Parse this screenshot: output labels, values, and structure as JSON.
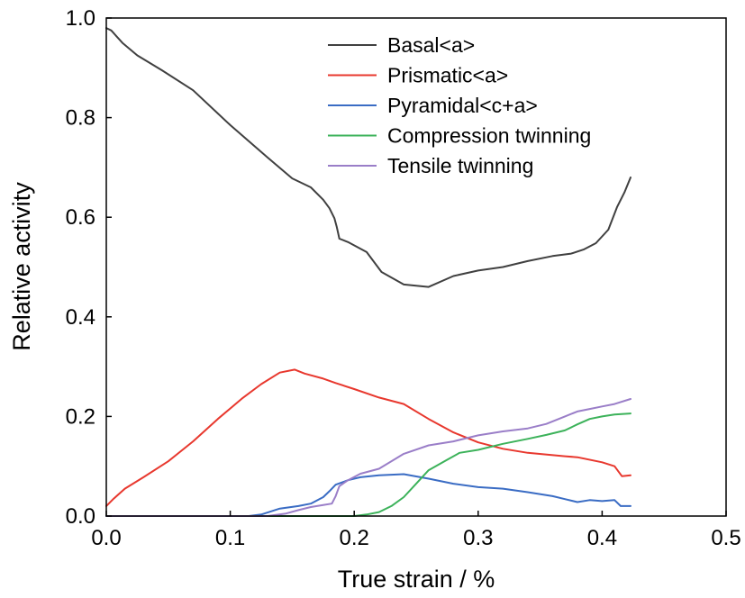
{
  "chart_data": {
    "type": "line",
    "title": "",
    "xlabel": "True strain / %",
    "ylabel": "Relative activity",
    "xlim": [
      0,
      0.5
    ],
    "ylim": [
      0,
      1.0
    ],
    "x_ticks": [
      "0.0",
      "0.1",
      "0.2",
      "0.3",
      "0.4",
      "0.5"
    ],
    "y_ticks": [
      "0.0",
      "0.2",
      "0.4",
      "0.6",
      "0.8",
      "1.0"
    ],
    "grid": false,
    "legend_position": "top-right",
    "series": [
      {
        "name": "Basal<a>",
        "color": "#404040",
        "points": [
          [
            0.0,
            0.98
          ],
          [
            0.004,
            0.975
          ],
          [
            0.013,
            0.95
          ],
          [
            0.025,
            0.925
          ],
          [
            0.045,
            0.895
          ],
          [
            0.07,
            0.855
          ],
          [
            0.1,
            0.785
          ],
          [
            0.13,
            0.72
          ],
          [
            0.15,
            0.678
          ],
          [
            0.165,
            0.66
          ],
          [
            0.175,
            0.635
          ],
          [
            0.18,
            0.618
          ],
          [
            0.184,
            0.598
          ],
          [
            0.186,
            0.58
          ],
          [
            0.188,
            0.557
          ],
          [
            0.195,
            0.55
          ],
          [
            0.21,
            0.53
          ],
          [
            0.222,
            0.49
          ],
          [
            0.24,
            0.465
          ],
          [
            0.26,
            0.46
          ],
          [
            0.28,
            0.482
          ],
          [
            0.3,
            0.493
          ],
          [
            0.32,
            0.5
          ],
          [
            0.34,
            0.512
          ],
          [
            0.36,
            0.522
          ],
          [
            0.375,
            0.527
          ],
          [
            0.385,
            0.535
          ],
          [
            0.395,
            0.548
          ],
          [
            0.405,
            0.575
          ],
          [
            0.412,
            0.62
          ],
          [
            0.418,
            0.65
          ],
          [
            0.423,
            0.68
          ]
        ]
      },
      {
        "name": "Prismatic<a>",
        "color": "#e8382e",
        "points": [
          [
            0.0,
            0.02
          ],
          [
            0.006,
            0.035
          ],
          [
            0.015,
            0.055
          ],
          [
            0.03,
            0.078
          ],
          [
            0.05,
            0.11
          ],
          [
            0.07,
            0.15
          ],
          [
            0.09,
            0.195
          ],
          [
            0.11,
            0.237
          ],
          [
            0.125,
            0.265
          ],
          [
            0.14,
            0.288
          ],
          [
            0.152,
            0.294
          ],
          [
            0.16,
            0.286
          ],
          [
            0.175,
            0.276
          ],
          [
            0.185,
            0.267
          ],
          [
            0.2,
            0.255
          ],
          [
            0.22,
            0.238
          ],
          [
            0.24,
            0.225
          ],
          [
            0.26,
            0.195
          ],
          [
            0.28,
            0.168
          ],
          [
            0.3,
            0.148
          ],
          [
            0.32,
            0.135
          ],
          [
            0.34,
            0.127
          ],
          [
            0.37,
            0.12
          ],
          [
            0.38,
            0.118
          ],
          [
            0.4,
            0.108
          ],
          [
            0.41,
            0.1
          ],
          [
            0.416,
            0.08
          ],
          [
            0.423,
            0.082
          ]
        ]
      },
      {
        "name": "Pyramidal<c+a>",
        "color": "#3a6cc4",
        "points": [
          [
            0.0,
            0.0
          ],
          [
            0.115,
            0.0
          ],
          [
            0.125,
            0.003
          ],
          [
            0.14,
            0.015
          ],
          [
            0.155,
            0.02
          ],
          [
            0.165,
            0.025
          ],
          [
            0.175,
            0.038
          ],
          [
            0.18,
            0.05
          ],
          [
            0.185,
            0.063
          ],
          [
            0.195,
            0.072
          ],
          [
            0.205,
            0.078
          ],
          [
            0.22,
            0.082
          ],
          [
            0.24,
            0.084
          ],
          [
            0.26,
            0.075
          ],
          [
            0.28,
            0.065
          ],
          [
            0.3,
            0.058
          ],
          [
            0.32,
            0.055
          ],
          [
            0.34,
            0.048
          ],
          [
            0.36,
            0.04
          ],
          [
            0.37,
            0.034
          ],
          [
            0.38,
            0.028
          ],
          [
            0.39,
            0.032
          ],
          [
            0.4,
            0.03
          ],
          [
            0.41,
            0.032
          ],
          [
            0.415,
            0.02
          ],
          [
            0.423,
            0.02
          ]
        ]
      },
      {
        "name": "Compression twinning",
        "color": "#3cb25a",
        "points": [
          [
            0.0,
            0.0
          ],
          [
            0.2,
            0.0
          ],
          [
            0.21,
            0.003
          ],
          [
            0.22,
            0.008
          ],
          [
            0.23,
            0.02
          ],
          [
            0.24,
            0.038
          ],
          [
            0.25,
            0.065
          ],
          [
            0.26,
            0.092
          ],
          [
            0.275,
            0.113
          ],
          [
            0.285,
            0.127
          ],
          [
            0.3,
            0.133
          ],
          [
            0.32,
            0.145
          ],
          [
            0.34,
            0.155
          ],
          [
            0.355,
            0.163
          ],
          [
            0.37,
            0.172
          ],
          [
            0.38,
            0.184
          ],
          [
            0.39,
            0.195
          ],
          [
            0.4,
            0.2
          ],
          [
            0.41,
            0.204
          ],
          [
            0.423,
            0.206
          ]
        ]
      },
      {
        "name": "Tensile twinning",
        "color": "#9a7ec8",
        "points": [
          [
            0.0,
            0.0
          ],
          [
            0.13,
            0.0
          ],
          [
            0.145,
            0.005
          ],
          [
            0.155,
            0.012
          ],
          [
            0.165,
            0.018
          ],
          [
            0.175,
            0.022
          ],
          [
            0.182,
            0.025
          ],
          [
            0.185,
            0.04
          ],
          [
            0.188,
            0.06
          ],
          [
            0.195,
            0.072
          ],
          [
            0.205,
            0.085
          ],
          [
            0.22,
            0.095
          ],
          [
            0.24,
            0.125
          ],
          [
            0.26,
            0.142
          ],
          [
            0.28,
            0.15
          ],
          [
            0.3,
            0.162
          ],
          [
            0.32,
            0.17
          ],
          [
            0.34,
            0.176
          ],
          [
            0.355,
            0.185
          ],
          [
            0.37,
            0.2
          ],
          [
            0.38,
            0.21
          ],
          [
            0.39,
            0.215
          ],
          [
            0.4,
            0.22
          ],
          [
            0.41,
            0.225
          ],
          [
            0.423,
            0.235
          ]
        ]
      }
    ]
  }
}
